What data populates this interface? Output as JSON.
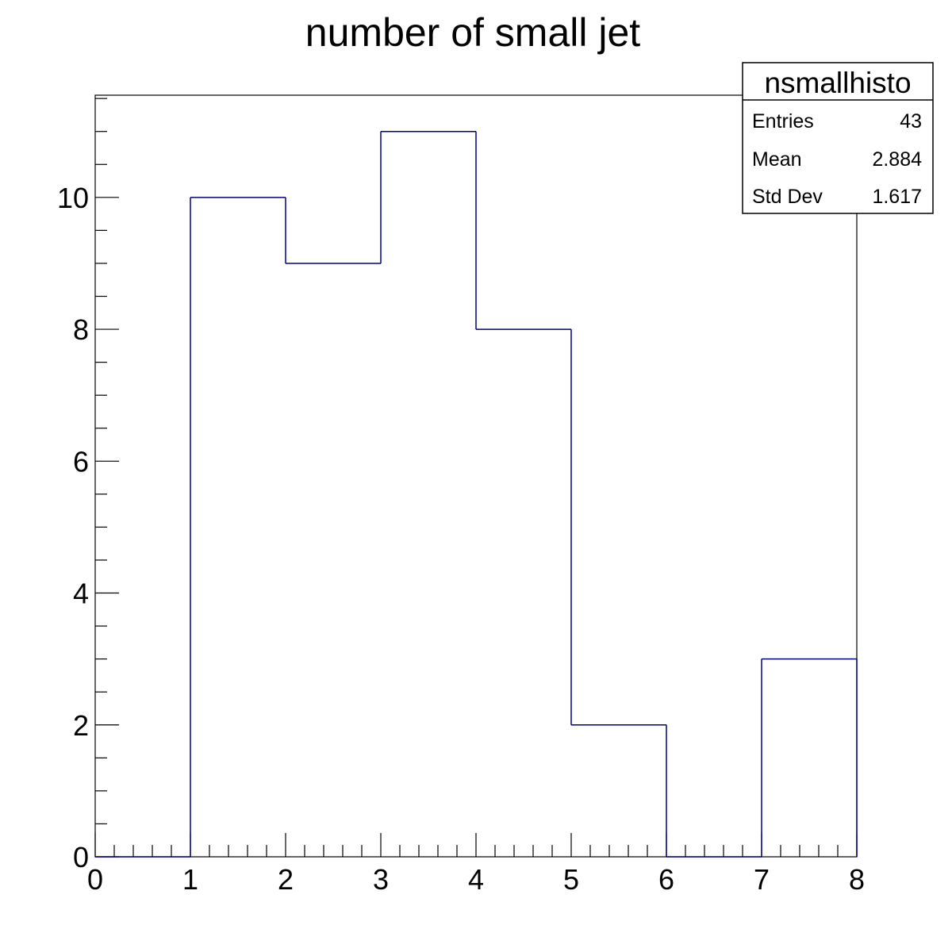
{
  "colors": {
    "background": "#ffffff",
    "axis": "#000000",
    "histogram_line": "#000080"
  },
  "chart_data": {
    "type": "histogram",
    "title": "number of small jet",
    "xlabel": "",
    "ylabel": "",
    "bin_edges": [
      0,
      1,
      2,
      3,
      4,
      5,
      6,
      7,
      8
    ],
    "values": [
      0,
      10,
      9,
      11,
      8,
      2,
      0,
      3
    ],
    "xlim": [
      0,
      8
    ],
    "ylim": [
      0,
      11.55
    ],
    "x_ticks": [
      0,
      1,
      2,
      3,
      4,
      5,
      6,
      7,
      8
    ],
    "y_ticks": [
      0,
      2,
      4,
      6,
      8,
      10
    ],
    "grid": false,
    "stats_box": {
      "name": "nsmallhisto",
      "rows": [
        {
          "label": "Entries",
          "value": "43"
        },
        {
          "label": "Mean",
          "value": "2.884"
        },
        {
          "label": "Std Dev",
          "value": "1.617"
        }
      ],
      "placement": "top-right"
    }
  }
}
